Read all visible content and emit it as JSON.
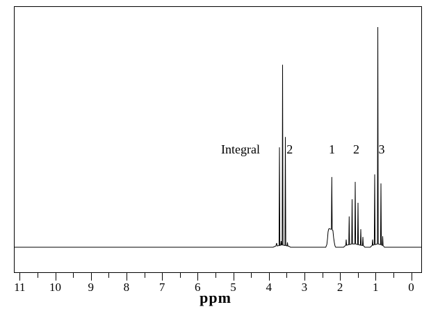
{
  "colors": {
    "line": "#000000",
    "background": "#ffffff",
    "text": "#000000"
  },
  "chart_data": {
    "type": "line",
    "title": "",
    "xlabel": "ppm",
    "ylabel": "",
    "integral_caption": "Integral",
    "x_axis": {
      "label": "ppm",
      "min": -0.3,
      "max": 11.16,
      "reversed": true,
      "grid": false,
      "major_ticks": [
        11,
        10,
        9,
        8,
        7,
        6,
        5,
        4,
        3,
        2,
        1,
        0
      ],
      "tick_labels": [
        "11",
        "10",
        "9",
        "8",
        "7",
        "6",
        "5",
        "4",
        "3",
        "2",
        "1",
        "0"
      ],
      "minor_tick_step": 0.5
    },
    "y_axis": {
      "visible": false,
      "max_intensity": 1.0
    },
    "peaks": [
      {
        "integral": "2",
        "center_ppm": 3.61,
        "multiplicity": "triplet",
        "line_ppms": [
          3.7,
          3.61,
          3.54
        ],
        "rel_heights": [
          0.45,
          0.83,
          0.5
        ]
      },
      {
        "integral": "1",
        "center_ppm": 2.23,
        "multiplicity": "broad singlet",
        "line_ppms": [
          2.23
        ],
        "rel_heights": [
          0.32
        ]
      },
      {
        "integral": "2",
        "center_ppm": 1.57,
        "multiplicity": "multiplet",
        "line_ppms": [
          1.74,
          1.66,
          1.57,
          1.49,
          1.42
        ],
        "rel_heights": [
          0.14,
          0.22,
          0.3,
          0.2,
          0.08
        ]
      },
      {
        "integral": "3",
        "center_ppm": 0.94,
        "multiplicity": "triplet",
        "line_ppms": [
          1.03,
          0.94,
          0.85
        ],
        "rel_heights": [
          0.33,
          1.0,
          0.29
        ]
      }
    ],
    "integral_labels": [
      {
        "text": "2",
        "ppm": 3.413
      },
      {
        "text": "1",
        "ppm": 2.227
      },
      {
        "text": "2",
        "ppm": 1.543
      },
      {
        "text": "3",
        "ppm": 0.83
      }
    ],
    "trace": [
      [
        3.88,
        0
      ],
      [
        3.8,
        0.006
      ],
      [
        3.782,
        0.019
      ],
      [
        3.764,
        0.006
      ],
      [
        3.713,
        0.008
      ],
      [
        3.701,
        0.454
      ],
      [
        3.689,
        0.008
      ],
      [
        3.664,
        0.01
      ],
      [
        3.652,
        0.028
      ],
      [
        3.64,
        0.01
      ],
      [
        3.625,
        0.01
      ],
      [
        3.613,
        0.829
      ],
      [
        3.601,
        0.01
      ],
      [
        3.547,
        0.008
      ],
      [
        3.535,
        0.501
      ],
      [
        3.523,
        0.008
      ],
      [
        3.489,
        0.006
      ],
      [
        3.477,
        0.022
      ],
      [
        3.465,
        0.006
      ],
      [
        3.42,
        0.003
      ],
      [
        3.39,
        0
      ],
      [
        2.4,
        0
      ],
      [
        2.37,
        0.013
      ],
      [
        2.35,
        0.041
      ],
      [
        2.335,
        0.069
      ],
      [
        2.32,
        0.082
      ],
      [
        2.3,
        0.085
      ],
      [
        2.27,
        0.082
      ],
      [
        2.243,
        0.082
      ],
      [
        2.231,
        0.319
      ],
      [
        2.219,
        0.079
      ],
      [
        2.2,
        0.076
      ],
      [
        2.18,
        0.044
      ],
      [
        2.16,
        0.022
      ],
      [
        2.14,
        0.006
      ],
      [
        2.12,
        0
      ],
      [
        1.9,
        0
      ],
      [
        1.838,
        0.009
      ],
      [
        1.826,
        0.035
      ],
      [
        1.814,
        0.009
      ],
      [
        1.754,
        0.012
      ],
      [
        1.742,
        0.14
      ],
      [
        1.73,
        0.012
      ],
      [
        1.672,
        0.015
      ],
      [
        1.66,
        0.218
      ],
      [
        1.648,
        0.015
      ],
      [
        1.584,
        0.015
      ],
      [
        1.572,
        0.297
      ],
      [
        1.56,
        0.015
      ],
      [
        1.506,
        0.012
      ],
      [
        1.494,
        0.202
      ],
      [
        1.482,
        0.012
      ],
      [
        1.428,
        0.009
      ],
      [
        1.416,
        0.082
      ],
      [
        1.404,
        0.009
      ],
      [
        1.369,
        0.008
      ],
      [
        1.357,
        0.047
      ],
      [
        1.345,
        0.008
      ],
      [
        1.3,
        0
      ],
      [
        1.15,
        0
      ],
      [
        1.096,
        0.009
      ],
      [
        1.084,
        0.035
      ],
      [
        1.072,
        0.009
      ],
      [
        1.037,
        0.012
      ],
      [
        1.025,
        0.331
      ],
      [
        1.013,
        0.012
      ],
      [
        0.9495,
        0.015
      ],
      [
        0.9375,
        1.0
      ],
      [
        0.9255,
        0.015
      ],
      [
        0.862,
        0.012
      ],
      [
        0.85,
        0.29
      ],
      [
        0.838,
        0.012
      ],
      [
        0.813,
        0.008
      ],
      [
        0.801,
        0.05
      ],
      [
        0.789,
        0.008
      ],
      [
        0.75,
        0
      ]
    ]
  }
}
